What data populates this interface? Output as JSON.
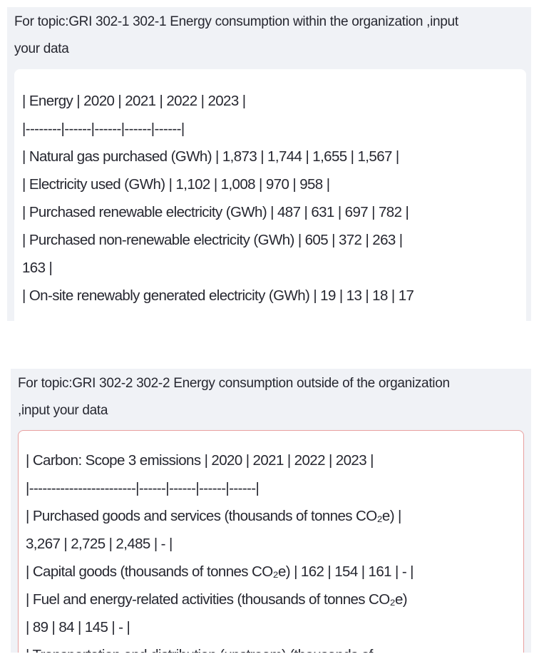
{
  "panels": [
    {
      "label": [
        "For topic:GRI 302-1 302-1 Energy consumption within the organization ,input",
        "your data"
      ],
      "lines": [
        "| Energy | 2020 | 2021 | 2022 | 2023 |",
        "|--------|------|------|------|------|",
        "| Natural gas purchased (GWh) | 1,873 | 1,744 | 1,655 | 1,567 |",
        "| Electricity used (GWh) | 1,102 | 1,008 | 970 | 958 |",
        "| Purchased renewable electricity (GWh) | 487 | 631 | 697 | 782 |",
        "| Purchased non-renewable electricity (GWh) | 605 | 372 | 263 |",
        "163 |",
        "| On-site renewably generated electricity (GWh) | 19 | 13 | 18 | 17"
      ]
    },
    {
      "label": [
        "For topic:GRI 302-2 302-2 Energy consumption outside of the organization",
        ",input your data"
      ],
      "lines": [
        "| Carbon: Scope 3 emissions | 2020 | 2021 | 2022 | 2023 |",
        "|------------------------|------|------|------|------|",
        "| Purchased goods and services (thousands of tonnes CO₂e) |",
        "3,267 | 2,725 | 2,485 | - |",
        "| Capital goods (thousands of tonnes CO₂e) | 162 | 154 | 161 | - |",
        "| Fuel and energy-related activities (thousands of tonnes CO₂e)",
        "| 89 | 84 | 145 | - |",
        "| Transportation and distribution (upstream) (thousands of"
      ]
    }
  ]
}
